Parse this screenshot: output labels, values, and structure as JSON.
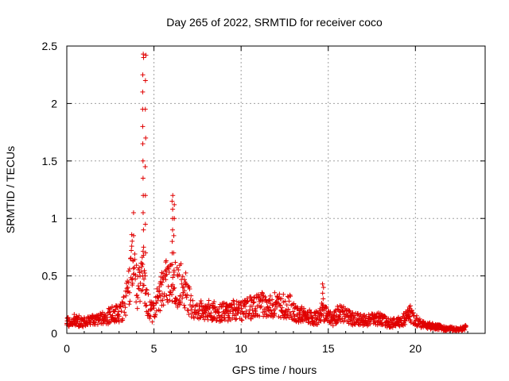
{
  "chart_data": {
    "type": "scatter",
    "title": "Day 265 of 2022, SRMTID for receiver coco",
    "xlabel": "GPS time / hours",
    "ylabel": "SRMTID / TECUs",
    "xlim": [
      0,
      24
    ],
    "ylim": [
      0,
      2.5
    ],
    "xticks": [
      0,
      5,
      10,
      15,
      20
    ],
    "xtick_labels": [
      "0",
      "5",
      "10",
      "15",
      "20"
    ],
    "yticks": [
      0,
      0.5,
      1,
      1.5,
      2,
      2.5
    ],
    "ytick_labels": [
      "0",
      "0.5",
      "1",
      "1.5",
      "2",
      "2.5"
    ],
    "grid": true,
    "marker": "plus",
    "series": [
      {
        "name": "SRMTID",
        "color": "#e00000",
        "envelope": [
          [
            0.0,
            0.1
          ],
          [
            0.3,
            0.12
          ],
          [
            0.6,
            0.11
          ],
          [
            0.9,
            0.1
          ],
          [
            1.2,
            0.1
          ],
          [
            1.5,
            0.11
          ],
          [
            1.8,
            0.12
          ],
          [
            2.1,
            0.13
          ],
          [
            2.4,
            0.15
          ],
          [
            2.7,
            0.17
          ],
          [
            3.0,
            0.17
          ],
          [
            3.2,
            0.2
          ],
          [
            3.4,
            0.28
          ],
          [
            3.6,
            0.45
          ],
          [
            3.75,
            0.65
          ],
          [
            3.9,
            0.5
          ],
          [
            4.05,
            0.38
          ],
          [
            4.2,
            0.4
          ],
          [
            4.35,
            0.55
          ],
          [
            4.5,
            0.35
          ],
          [
            4.7,
            0.22
          ],
          [
            4.9,
            0.18
          ],
          [
            5.1,
            0.25
          ],
          [
            5.3,
            0.32
          ],
          [
            5.5,
            0.4
          ],
          [
            5.7,
            0.45
          ],
          [
            5.9,
            0.42
          ],
          [
            6.1,
            0.48
          ],
          [
            6.3,
            0.4
          ],
          [
            6.5,
            0.45
          ],
          [
            6.7,
            0.4
          ],
          [
            6.9,
            0.35
          ],
          [
            7.1,
            0.25
          ],
          [
            7.3,
            0.18
          ],
          [
            7.6,
            0.2
          ],
          [
            8.0,
            0.22
          ],
          [
            8.4,
            0.2
          ],
          [
            8.8,
            0.18
          ],
          [
            9.2,
            0.19
          ],
          [
            9.6,
            0.2
          ],
          [
            10.0,
            0.2
          ],
          [
            10.4,
            0.22
          ],
          [
            10.8,
            0.24
          ],
          [
            11.2,
            0.25
          ],
          [
            11.6,
            0.24
          ],
          [
            12.0,
            0.25
          ],
          [
            12.4,
            0.24
          ],
          [
            12.8,
            0.23
          ],
          [
            13.2,
            0.18
          ],
          [
            13.6,
            0.15
          ],
          [
            14.0,
            0.14
          ],
          [
            14.4,
            0.13
          ],
          [
            14.7,
            0.2
          ],
          [
            15.0,
            0.15
          ],
          [
            15.3,
            0.12
          ],
          [
            15.6,
            0.18
          ],
          [
            15.9,
            0.16
          ],
          [
            16.3,
            0.13
          ],
          [
            16.7,
            0.12
          ],
          [
            17.1,
            0.11
          ],
          [
            17.5,
            0.12
          ],
          [
            17.9,
            0.13
          ],
          [
            18.3,
            0.1
          ],
          [
            18.7,
            0.09
          ],
          [
            19.1,
            0.1
          ],
          [
            19.5,
            0.14
          ],
          [
            19.7,
            0.18
          ],
          [
            19.9,
            0.13
          ],
          [
            20.2,
            0.09
          ],
          [
            20.6,
            0.07
          ],
          [
            21.0,
            0.06
          ],
          [
            21.4,
            0.05
          ],
          [
            21.8,
            0.04
          ],
          [
            22.2,
            0.04
          ],
          [
            22.6,
            0.04
          ],
          [
            22.9,
            0.05
          ]
        ],
        "spikes": [
          {
            "x": 4.38,
            "values": [
              0.6,
              0.75,
              0.9,
              1.05,
              1.2,
              1.35,
              1.5,
              1.65,
              1.8,
              1.95,
              2.1,
              2.25,
              2.4,
              2.43
            ]
          },
          {
            "x": 4.52,
            "values": [
              0.5,
              0.7,
              0.95,
              1.2,
              1.45,
              1.7,
              1.95,
              2.2,
              2.42
            ]
          },
          {
            "x": 6.05,
            "values": [
              0.6,
              0.7,
              0.8,
              0.9,
              1.0,
              1.08,
              1.15,
              1.2
            ]
          },
          {
            "x": 6.15,
            "values": [
              0.55,
              0.7,
              0.85,
              1.0,
              1.12
            ]
          },
          {
            "x": 3.85,
            "values": [
              0.85,
              1.05
            ]
          },
          {
            "x": 14.7,
            "values": [
              0.3,
              0.35,
              0.4,
              0.43
            ]
          },
          {
            "x": 19.7,
            "values": [
              0.2,
              0.24
            ]
          }
        ]
      }
    ]
  }
}
